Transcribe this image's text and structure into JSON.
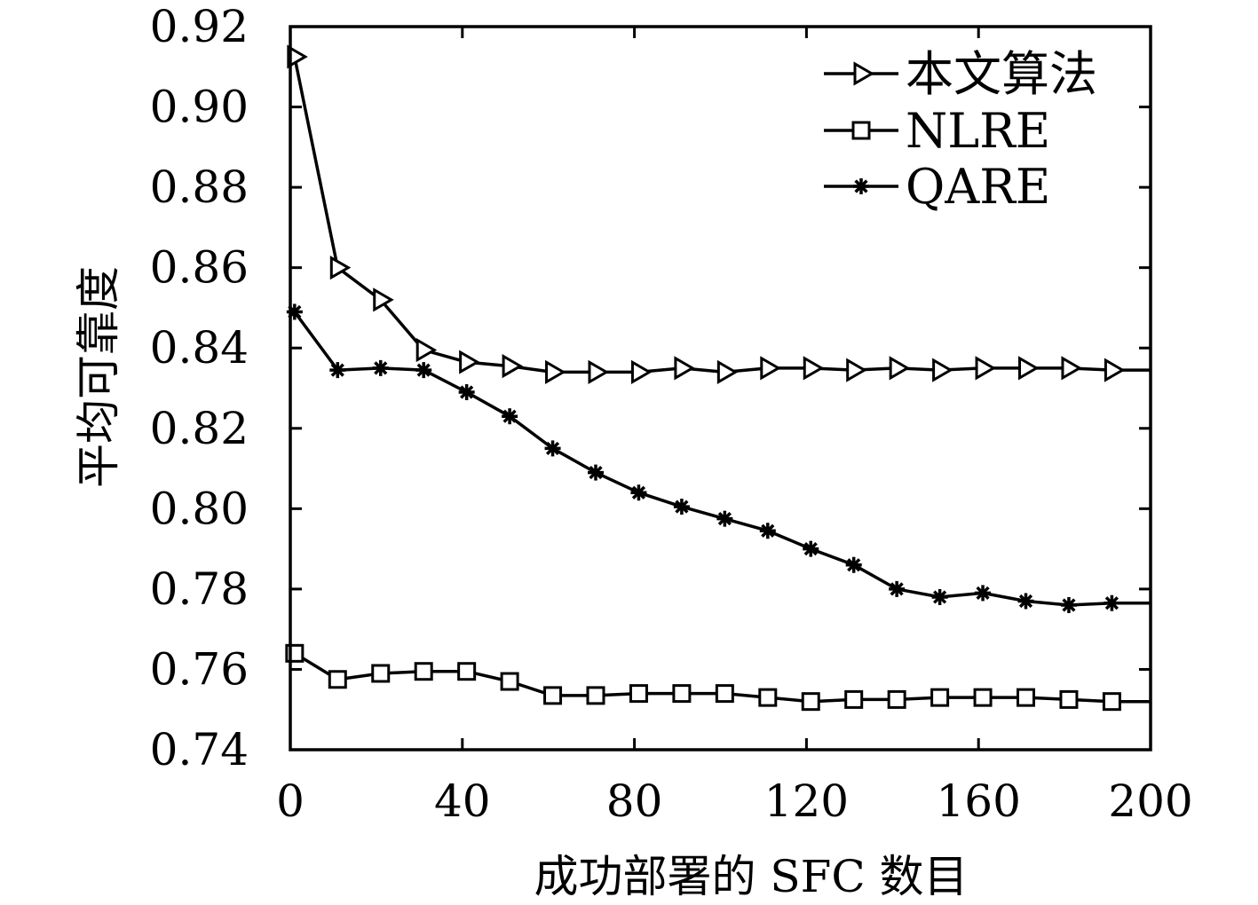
{
  "chart_data": {
    "type": "line",
    "title": "",
    "xlabel": "成功部署的 SFC 数目",
    "ylabel": "平均可靠度",
    "xlim": [
      0,
      200
    ],
    "ylim": [
      0.74,
      0.92
    ],
    "x_ticks": [
      "0",
      "40",
      "80",
      "120",
      "160",
      "200"
    ],
    "y_ticks": [
      "0.74",
      "0.76",
      "0.78",
      "0.80",
      "0.82",
      "0.84",
      "0.86",
      "0.88",
      "0.90",
      "0.92"
    ],
    "grid": false,
    "legend_position": "top-right",
    "line_end_x": 200,
    "series": [
      {
        "name": "本文算法",
        "marker": "triangle-right",
        "x": [
          1,
          11,
          21,
          31,
          41,
          51,
          61,
          71,
          81,
          91,
          101,
          111,
          121,
          131,
          141,
          151,
          161,
          171,
          181,
          191
        ],
        "values": [
          0.9125,
          0.86,
          0.852,
          0.8395,
          0.8365,
          0.8355,
          0.834,
          0.834,
          0.834,
          0.835,
          0.834,
          0.835,
          0.835,
          0.8345,
          0.835,
          0.8345,
          0.835,
          0.835,
          0.835,
          0.8345
        ]
      },
      {
        "name": "NLRE",
        "marker": "square",
        "x": [
          1,
          11,
          21,
          31,
          41,
          51,
          61,
          71,
          81,
          91,
          101,
          111,
          121,
          131,
          141,
          151,
          161,
          171,
          181,
          191
        ],
        "values": [
          0.764,
          0.7575,
          0.759,
          0.7595,
          0.7595,
          0.757,
          0.7535,
          0.7535,
          0.754,
          0.754,
          0.754,
          0.753,
          0.752,
          0.7525,
          0.7525,
          0.753,
          0.753,
          0.753,
          0.7525,
          0.752
        ]
      },
      {
        "name": "QARE",
        "marker": "asterisk",
        "x": [
          1,
          11,
          21,
          31,
          41,
          51,
          61,
          71,
          81,
          91,
          101,
          111,
          121,
          131,
          141,
          151,
          161,
          171,
          181,
          191
        ],
        "values": [
          0.849,
          0.8345,
          0.835,
          0.8345,
          0.829,
          0.823,
          0.815,
          0.809,
          0.804,
          0.8005,
          0.7975,
          0.7945,
          0.79,
          0.786,
          0.78,
          0.778,
          0.779,
          0.777,
          0.776,
          0.7765
        ]
      }
    ]
  }
}
